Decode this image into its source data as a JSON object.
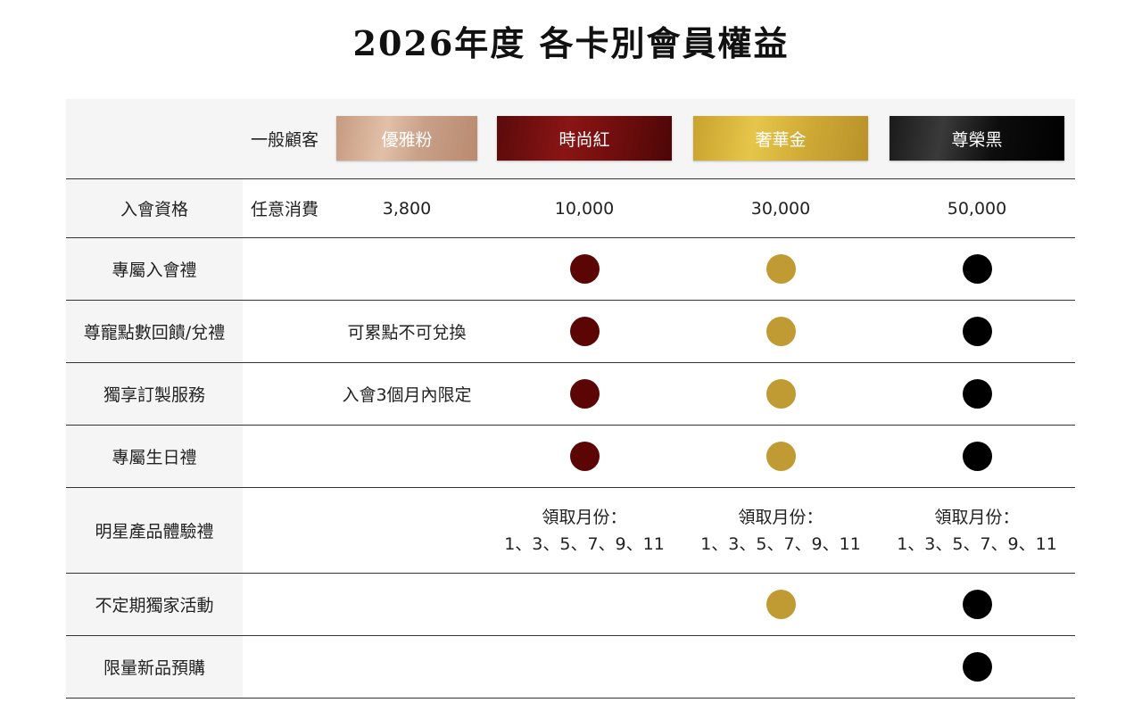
{
  "title": "2026年度 各卡別會員權益",
  "header": {
    "general": "一般顧客",
    "tiers": [
      {
        "key": "pink",
        "label": "優雅粉"
      },
      {
        "key": "red",
        "label": "時尚紅"
      },
      {
        "key": "gold",
        "label": "奢華金"
      },
      {
        "key": "black",
        "label": "尊榮黑"
      }
    ]
  },
  "colors": {
    "red_dot": "#5c0505",
    "gold_dot": "#c09a32",
    "black_dot": "#000000",
    "label_bg": "#f5f5f5"
  },
  "rows": {
    "eligibility": {
      "label": "入會資格",
      "general": "任意消費",
      "pink": "3,800",
      "red": "10,000",
      "gold": "30,000",
      "black": "50,000"
    },
    "welcome_gift": {
      "label": "專屬入會禮",
      "included": [
        "red",
        "gold",
        "black"
      ]
    },
    "points": {
      "label": "尊寵點數回饋/兌禮",
      "note": "可累點不可兌換",
      "included": [
        "red",
        "gold",
        "black"
      ]
    },
    "custom_service": {
      "label": "獨享訂製服務",
      "note": "入會3個月內限定",
      "included": [
        "red",
        "gold",
        "black"
      ]
    },
    "birthday_gift": {
      "label": "專屬生日禮",
      "included": [
        "red",
        "gold",
        "black"
      ]
    },
    "trial_gift": {
      "label": "明星產品體驗禮",
      "month_label": "領取月份：",
      "months": "1、3、5、7、9、11",
      "included": [
        "red",
        "gold",
        "black"
      ]
    },
    "exclusive_events": {
      "label": "不定期獨家活動",
      "included": [
        "gold",
        "black"
      ]
    },
    "limited_preorder": {
      "label": "限量新品預購",
      "included": [
        "black"
      ]
    }
  }
}
